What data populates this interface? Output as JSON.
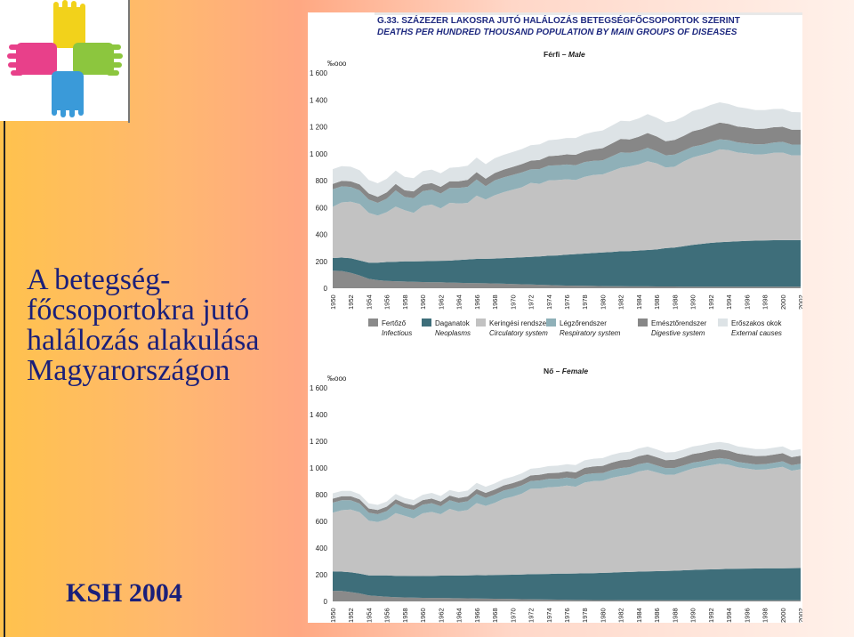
{
  "slide": {
    "title_lines": [
      "A betegség-",
      "főcsoportokra jutó",
      "halálozás alakulása",
      "Magyarországon"
    ],
    "source": "KSH 2004"
  },
  "logo": {
    "name": "hands-cross-logo",
    "colors": [
      "#f2d21b",
      "#e8408a",
      "#8cc63e",
      "#3a9ad9"
    ]
  },
  "chart_data": {
    "type": "area",
    "stacked": true,
    "title": "G.33. SZÁZEZER LAKOSRA JUTÓ HALÁLOZÁS BETEGSÉGFŐCSOPORTOK SZERINT",
    "subtitle": "DEATHS PER HUNDRED THOUSAND POPULATION BY MAIN GROUPS OF DISEASES",
    "ylabel": "‰ooo",
    "ylim": [
      0,
      1600
    ],
    "yticks": [
      0,
      200,
      400,
      600,
      800,
      1000,
      1200,
      1400,
      1600
    ],
    "ytick_labels": [
      "0",
      "200",
      "400",
      "600",
      "800",
      "1 000",
      "1 200",
      "1 400",
      "1 600"
    ],
    "x": [
      1950,
      1951,
      1952,
      1953,
      1954,
      1955,
      1956,
      1957,
      1958,
      1959,
      1960,
      1961,
      1962,
      1963,
      1964,
      1965,
      1966,
      1967,
      1968,
      1969,
      1970,
      1971,
      1972,
      1973,
      1974,
      1975,
      1976,
      1977,
      1978,
      1979,
      1980,
      1981,
      1982,
      1983,
      1984,
      1985,
      1986,
      1987,
      1988,
      1989,
      1990,
      1991,
      1992,
      1993,
      1994,
      1995,
      1996,
      1997,
      1998,
      1999,
      2000,
      2001,
      2002
    ],
    "xtick_labels": [
      "1950",
      "1952",
      "1954",
      "1956",
      "1958",
      "1960",
      "1962",
      "1964",
      "1966",
      "1968",
      "1970",
      "1972",
      "1974",
      "1976",
      "1978",
      "1980",
      "1982",
      "1984",
      "1986",
      "1988",
      "1990",
      "1992",
      "1994",
      "1996",
      "1998",
      "2000",
      "2002"
    ],
    "colors": [
      "#8a8a8a",
      "#3e6e7a",
      "#c2c2c2",
      "#8fb0b8",
      "#878787",
      "#dde3e6"
    ],
    "legend": [
      {
        "hu": "Fertőző",
        "en": "Infectious"
      },
      {
        "hu": "Daganatok",
        "en": "Neoplasms"
      },
      {
        "hu": "Keringési rendszer",
        "en": "Circulatory system"
      },
      {
        "hu": "Légzőrendszer",
        "en": "Respiratory system"
      },
      {
        "hu": "Emésztőrendszer",
        "en": "Digestive system"
      },
      {
        "hu": "Erőszakos okok",
        "en": "External causes"
      }
    ],
    "panels": [
      {
        "label_hu": "Férfi",
        "label_en": "Male",
        "series": [
          {
            "name": "Fertőző",
            "values": [
              130,
              128,
              115,
              95,
              70,
              60,
              55,
              52,
              50,
              48,
              46,
              44,
              44,
              42,
              40,
              39,
              38,
              37,
              36,
              34,
              32,
              30,
              28,
              26,
              24,
              22,
              20,
              19,
              18,
              17,
              16,
              15,
              15,
              14,
              14,
              14,
              13,
              13,
              13,
              12,
              12,
              12,
              12,
              12,
              12,
              12,
              12,
              12,
              12,
              12,
              12,
              12,
              12
            ]
          },
          {
            "name": "Daganatok",
            "values": [
              95,
              100,
              108,
              112,
              120,
              130,
              140,
              145,
              150,
              152,
              155,
              158,
              160,
              163,
              170,
              175,
              180,
              182,
              185,
              190,
              195,
              200,
              205,
              210,
              218,
              222,
              230,
              235,
              240,
              245,
              250,
              255,
              260,
              262,
              266,
              270,
              275,
              285,
              290,
              300,
              310,
              318,
              325,
              330,
              334,
              337,
              340,
              342,
              344,
              345,
              346,
              346,
              346
            ]
          },
          {
            "name": "Keringési rendszer",
            "values": [
              380,
              410,
              420,
              420,
              370,
              350,
              370,
              410,
              380,
              360,
              410,
              420,
              390,
              430,
              420,
              420,
              470,
              440,
              470,
              490,
              505,
              520,
              550,
              540,
              560,
              560,
              560,
              550,
              570,
              580,
              580,
              600,
              620,
              630,
              640,
              660,
              640,
              600,
              600,
              630,
              650,
              660,
              670,
              690,
              680,
              660,
              650,
              640,
              640,
              650,
              650,
              630,
              630
            ]
          },
          {
            "name": "Légzőrendszer",
            "values": [
              130,
              120,
              110,
              100,
              100,
              95,
              100,
              120,
              100,
              110,
              110,
              110,
              110,
              110,
              115,
              120,
              120,
              100,
              110,
              110,
              110,
              110,
              100,
              110,
              110,
              110,
              110,
              110,
              110,
              105,
              105,
              110,
              115,
              100,
              100,
              100,
              90,
              90,
              90,
              80,
              80,
              75,
              80,
              75,
              75,
              75,
              75,
              75,
              75,
              75,
              80,
              80,
              80
            ]
          },
          {
            "name": "Emésztőrendszer",
            "values": [
              40,
              40,
              42,
              45,
              45,
              45,
              48,
              48,
              48,
              50,
              50,
              50,
              50,
              50,
              50,
              52,
              55,
              55,
              55,
              58,
              60,
              62,
              65,
              68,
              70,
              72,
              75,
              78,
              80,
              85,
              90,
              95,
              100,
              100,
              105,
              110,
              110,
              105,
              110,
              110,
              115,
              118,
              120,
              125,
              120,
              118,
              118,
              115,
              115,
              115,
              112,
              110,
              110
            ]
          },
          {
            "name": "Erőszakos okok",
            "values": [
              110,
              110,
              108,
              105,
              100,
              100,
              100,
              100,
              100,
              98,
              100,
              100,
              100,
              100,
              105,
              105,
              108,
              108,
              110,
              110,
              110,
              112,
              115,
              115,
              118,
              120,
              122,
              125,
              128,
              130,
              132,
              133,
              134,
              135,
              137,
              140,
              140,
              140,
              142,
              145,
              150,
              152,
              155,
              150,
              148,
              145,
              142,
              140,
              138,
              135,
              133,
              132,
              130
            ]
          }
        ]
      },
      {
        "label_hu": "Nő",
        "label_en": "Female",
        "series": [
          {
            "name": "Fertőző",
            "values": [
              80,
              78,
              70,
              60,
              45,
              40,
              35,
              32,
              30,
              28,
              27,
              26,
              26,
              25,
              24,
              23,
              22,
              21,
              20,
              19,
              18,
              17,
              16,
              15,
              14,
              13,
              12,
              11,
              11,
              10,
              10,
              10,
              9,
              9,
              9,
              9,
              9,
              8,
              8,
              8,
              8,
              8,
              8,
              8,
              8,
              8,
              8,
              8,
              8,
              8,
              8,
              8,
              8
            ]
          },
          {
            "name": "Daganatok",
            "values": [
              145,
              145,
              148,
              148,
              150,
              155,
              160,
              160,
              162,
              163,
              163,
              165,
              167,
              168,
              170,
              172,
              175,
              175,
              178,
              180,
              182,
              185,
              188,
              190,
              192,
              195,
              196,
              198,
              200,
              202,
              204,
              206,
              210,
              212,
              214,
              216,
              218,
              220,
              222,
              225,
              228,
              230,
              232,
              234,
              236,
              237,
              238,
              239,
              240,
              240,
              240,
              241,
              242
            ]
          },
          {
            "name": "Keringési rendszer",
            "values": [
              440,
              460,
              470,
              460,
              410,
              400,
              420,
              470,
              450,
              430,
              470,
              480,
              460,
              500,
              480,
              490,
              540,
              520,
              540,
              570,
              585,
              605,
              640,
              640,
              650,
              650,
              660,
              650,
              680,
              690,
              690,
              710,
              720,
              730,
              750,
              760,
              740,
              720,
              720,
              740,
              760,
              770,
              780,
              790,
              780,
              760,
              750,
              740,
              740,
              750,
              760,
              730,
              740
            ]
          },
          {
            "name": "Légzőrendszer",
            "values": [
              75,
              75,
              70,
              65,
              60,
              58,
              62,
              70,
              60,
              65,
              65,
              65,
              60,
              65,
              65,
              66,
              68,
              60,
              62,
              62,
              62,
              62,
              58,
              62,
              62,
              60,
              60,
              60,
              60,
              58,
              58,
              58,
              60,
              55,
              55,
              55,
              52,
              50,
              50,
              46,
              44,
              42,
              45,
              42,
              42,
              40,
              40,
              40,
              40,
              40,
              42,
              42,
              42
            ]
          },
          {
            "name": "Emésztőrendszer",
            "values": [
              30,
              30,
              30,
              32,
              32,
              32,
              33,
              33,
              33,
              34,
              34,
              35,
              35,
              35,
              36,
              36,
              37,
              37,
              38,
              38,
              40,
              40,
              42,
              42,
              44,
              45,
              46,
              48,
              50,
              52,
              54,
              56,
              58,
              58,
              60,
              62,
              62,
              60,
              62,
              62,
              64,
              65,
              66,
              66,
              64,
              63,
              62,
              62,
              62,
              62,
              61,
              60,
              60
            ]
          },
          {
            "name": "Erőszakos okok",
            "values": [
              40,
              40,
              40,
              38,
              38,
              38,
              38,
              40,
              40,
              40,
              40,
              42,
              42,
              42,
              44,
              44,
              46,
              46,
              46,
              48,
              48,
              50,
              50,
              52,
              52,
              54,
              54,
              55,
              56,
              57,
              58,
              58,
              58,
              58,
              58,
              58,
              58,
              58,
              57,
              57,
              57,
              57,
              56,
              55,
              55,
              54,
              54,
              53,
              52,
              52,
              51,
              50,
              50
            ]
          }
        ]
      }
    ]
  }
}
